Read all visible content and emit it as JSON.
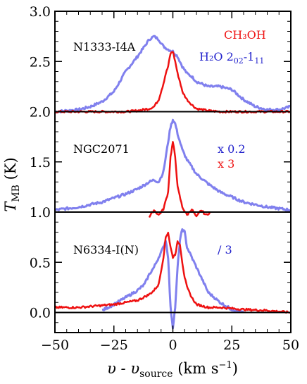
{
  "chart_data": {
    "type": "line",
    "xlabel": "υ - υ",
    "xlabel_sub": "source",
    "xlabel_unit": " (km s",
    "xlabel_exp": "−1",
    "xlabel_close": ")",
    "ylabel": "T",
    "ylabel_sub": "MB",
    "ylabel_unit": " (K)",
    "xlim": [
      -50,
      50
    ],
    "ylim": [
      -0.2,
      3.0
    ],
    "xticks": [
      -50,
      -25,
      0,
      25,
      50
    ],
    "xtick_labels": [
      "−50",
      "−25",
      "0",
      "25",
      "50"
    ],
    "yticks": [
      0.0,
      0.5,
      1.0,
      1.5,
      2.0,
      2.5,
      3.0
    ],
    "ytick_labels": [
      "0.0",
      "0.5",
      "1.0",
      "1.5",
      "2.0",
      "2.5",
      "3.0"
    ],
    "baselines": [
      0.0,
      1.0,
      2.0
    ],
    "colors": {
      "ch3oh": "#ee1111",
      "h2o": "#8080ee",
      "baseline": "#000000"
    },
    "legend": {
      "ch3oh": "CH₃OH",
      "h2o_base": "H₂O 2",
      "h2o_sub1": "02",
      "h2o_dash": "-1",
      "h2o_sub2": "11"
    },
    "panels": [
      {
        "source": "N1333-I4A",
        "scale_note": "",
        "series": [
          {
            "line": "H2O",
            "x": [
              -50,
              -40,
              -35,
              -30,
              -25,
              -20,
              -15,
              -12,
              -10,
              -8,
              -6,
              -4,
              -2,
              0,
              2,
              4,
              6,
              8,
              10,
              15,
              20,
              25,
              30,
              35,
              40,
              45,
              50
            ],
            "y": [
              2.0,
              2.02,
              2.05,
              2.1,
              2.2,
              2.4,
              2.55,
              2.65,
              2.72,
              2.75,
              2.72,
              2.65,
              2.62,
              2.6,
              2.55,
              2.45,
              2.38,
              2.35,
              2.3,
              2.25,
              2.25,
              2.22,
              2.12,
              2.05,
              2.02,
              2.02,
              2.05
            ]
          },
          {
            "line": "CH3OH",
            "x": [
              -50,
              -30,
              -20,
              -15,
              -10,
              -8,
              -6,
              -4,
              -3,
              -2,
              -1,
              0,
              1,
              2,
              3,
              4,
              6,
              8,
              10,
              15,
              20,
              30,
              50
            ],
            "y": [
              2.0,
              2.0,
              2.0,
              2.01,
              2.03,
              2.05,
              2.12,
              2.28,
              2.38,
              2.45,
              2.58,
              2.6,
              2.5,
              2.38,
              2.3,
              2.2,
              2.12,
              2.07,
              2.03,
              2.01,
              2.0,
              2.0,
              2.0
            ]
          }
        ]
      },
      {
        "source": "NGC2071",
        "scale_note": "x 0.2",
        "scale_note2": "x 3",
        "series": [
          {
            "line": "H2O",
            "x": [
              -50,
              -40,
              -30,
              -20,
              -15,
              -10,
              -8,
              -6,
              -4,
              -2,
              -1,
              0,
              1,
              2,
              4,
              6,
              8,
              10,
              15,
              20,
              30,
              40,
              50
            ],
            "y": [
              1.02,
              1.05,
              1.1,
              1.18,
              1.23,
              1.3,
              1.32,
              1.3,
              1.4,
              1.7,
              1.85,
              1.92,
              1.88,
              1.78,
              1.62,
              1.52,
              1.45,
              1.38,
              1.28,
              1.2,
              1.1,
              1.05,
              1.02
            ]
          },
          {
            "line": "CH3OH",
            "x": [
              -10,
              -8,
              -6,
              -4,
              -2,
              -1,
              0,
              1,
              2,
              4,
              6,
              8,
              10,
              12,
              14,
              16
            ],
            "y": [
              0.95,
              1.02,
              0.97,
              1.03,
              1.2,
              1.55,
              1.7,
              1.55,
              1.25,
              1.05,
              0.97,
              1.03,
              0.95,
              1.02,
              0.97,
              1.0
            ]
          }
        ]
      },
      {
        "source": "N6334-I(N)",
        "scale_note": "/ 3",
        "series": [
          {
            "line": "H2O",
            "x": [
              -30,
              -25,
              -20,
              -15,
              -12,
              -10,
              -8,
              -6,
              -4,
              -3,
              -2,
              -1,
              0,
              1,
              2,
              3,
              4,
              5,
              6,
              8,
              10,
              12,
              15,
              20,
              25,
              30
            ],
            "y": [
              0.02,
              0.08,
              0.15,
              0.22,
              0.28,
              0.38,
              0.45,
              0.55,
              0.65,
              0.72,
              0.55,
              0.05,
              -0.15,
              0.05,
              0.45,
              0.72,
              0.83,
              0.8,
              0.65,
              0.55,
              0.45,
              0.35,
              0.2,
              0.1,
              0.03,
              0.0
            ]
          },
          {
            "line": "CH3OH",
            "x": [
              -50,
              -40,
              -30,
              -25,
              -20,
              -15,
              -10,
              -8,
              -6,
              -4,
              -3,
              -2,
              -1,
              0,
              1,
              2,
              3,
              4,
              5,
              6,
              8,
              10,
              15,
              20,
              30,
              40,
              50
            ],
            "y": [
              0.05,
              0.05,
              0.07,
              0.08,
              0.1,
              0.12,
              0.18,
              0.22,
              0.28,
              0.55,
              0.75,
              0.8,
              0.65,
              0.55,
              0.58,
              0.7,
              0.68,
              0.5,
              0.35,
              0.25,
              0.15,
              0.08,
              0.05,
              0.05,
              0.03,
              0.02,
              0.0
            ]
          }
        ]
      }
    ]
  }
}
